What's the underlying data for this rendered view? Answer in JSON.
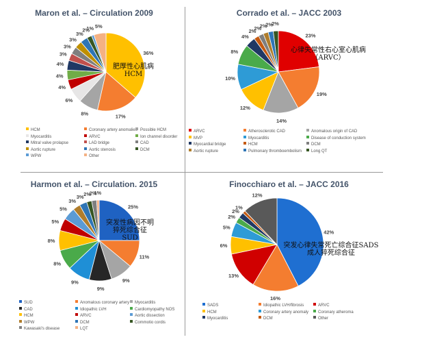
{
  "chart_data": [
    {
      "type": "pie",
      "title": "Maron et al. – Circulation 2009",
      "annotation": [
        "肥厚性心肌病",
        "HCM"
      ],
      "categories": [
        "HCM",
        "Coronary artery anomalies",
        "Possible HCM",
        "Myocarditis",
        "ARVC",
        "Ion channel disorder",
        "Mitral valve prolapse",
        "LAD bridge",
        "CAD",
        "Aortic rupture",
        "Aortic stenosis",
        "DCM",
        "WPW",
        "Other"
      ],
      "values": [
        36,
        17,
        8,
        6,
        4,
        4,
        4,
        3,
        3,
        3,
        3,
        2,
        1,
        5
      ],
      "value_labels": [
        "36%",
        "17%",
        "8%",
        "6%",
        "4%",
        "4%",
        "4%",
        "3%",
        "3%",
        "3%",
        "3%",
        "2%",
        "1%",
        "5%"
      ],
      "colors": [
        "#ffc000",
        "#f47d30",
        "#a5a5a5",
        "#e7e6e6",
        "#c00000",
        "#70ad47",
        "#203864",
        "#c0504d",
        "#7f7f7f",
        "#bf8f00",
        "#2e75b6",
        "#375623",
        "#5b9bd5",
        "#f4b183"
      ]
    },
    {
      "type": "pie",
      "title": "Corrado et al. – JACC 2003",
      "annotation": [
        "心律失常性右心室心肌病",
        "（ARVC）"
      ],
      "categories": [
        "ARVC",
        "Atherosclerotic CAD",
        "Anomalous origin of CAD",
        "MVP",
        "Myocarditis",
        "Disease of conduction system",
        "Myocardial bridge",
        "HCM",
        "DCM",
        "Aortic rupture",
        "Pulmonary thromboembolism",
        "Long QT"
      ],
      "values": [
        23,
        19,
        14,
        12,
        10,
        8,
        4,
        2,
        2,
        2,
        2,
        2
      ],
      "value_labels": [
        "23%",
        "19%",
        "14%",
        "12%",
        "10%",
        "8%",
        "4%",
        "2%",
        "2%",
        "2%",
        "2%",
        "2%"
      ],
      "colors": [
        "#e00000",
        "#f47d30",
        "#a5a5a5",
        "#ffc000",
        "#2e9bd6",
        "#4aaa4a",
        "#203864",
        "#c55a11",
        "#7f7f7f",
        "#b07d2b",
        "#2e75b6",
        "#375623"
      ]
    },
    {
      "type": "pie",
      "title": "Harmon et al. – Circulation. 2015",
      "annotation": [
        "突发性病因不明",
        "猝死综合征",
        "SUD"
      ],
      "categories": [
        "SUD",
        "Anomalous coronary artery",
        "Myocarditis",
        "CAD",
        "Idiopathic LVH",
        "Cardiomyopathy NOS",
        "HCM",
        "ARVC",
        "Aortic dissection",
        "WPW",
        "DCM",
        "Commotio cordis",
        "Kawasaki's disease",
        "LQT"
      ],
      "values": [
        25,
        11,
        9,
        9,
        9,
        8,
        8,
        5,
        5,
        3,
        3,
        2,
        2,
        1
      ],
      "value_labels": [
        "25%",
        "11%",
        "9%",
        "9%",
        "9%",
        "8%",
        "8%",
        "5%",
        "5%",
        "3%",
        "3%",
        "2%",
        "2%",
        "1%"
      ],
      "colors": [
        "#1f62c2",
        "#f47d30",
        "#a5a5a5",
        "#262626",
        "#1f8fd6",
        "#4aaa4a",
        "#ffc000",
        "#c00000",
        "#5b9bd5",
        "#b07d2b",
        "#2e75b6",
        "#375623",
        "#7f7f7f",
        "#f4b183"
      ]
    },
    {
      "type": "pie",
      "title": "Finocchiaro et al. – JACC 2016",
      "annotation": [
        "突发心律失常死亡综合征SADS",
        "成人猝死综合征"
      ],
      "categories": [
        "SADS",
        "Idiopathic LVH/fibrosis",
        "ARVC",
        "HCM",
        "Coronary artery anomaly",
        "Coronary atheroma",
        "Myocarditis",
        "DCM",
        "Other"
      ],
      "values": [
        42,
        16,
        13,
        6,
        5,
        2,
        2,
        1,
        12
      ],
      "value_labels": [
        "42%",
        "16%",
        "13%",
        "6%",
        "5%",
        "2%",
        "2%",
        "1%",
        "12%"
      ],
      "colors": [
        "#1f6fd1",
        "#f47d30",
        "#d00000",
        "#ffc000",
        "#2e9bd6",
        "#4aaa4a",
        "#203864",
        "#c55a11",
        "#595959"
      ]
    }
  ]
}
